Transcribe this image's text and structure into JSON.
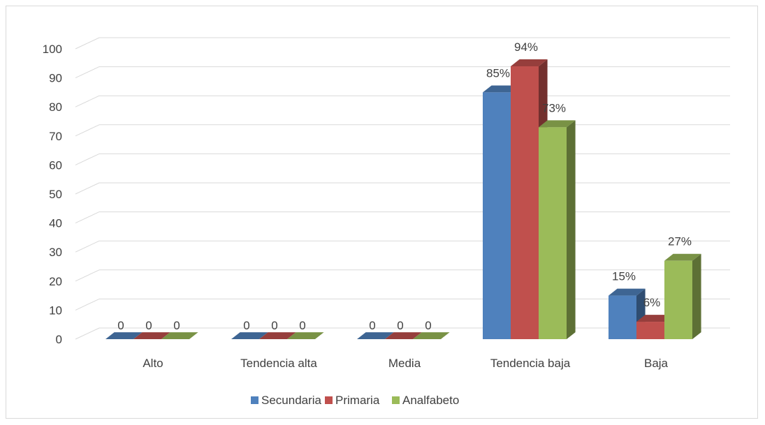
{
  "chart_data": {
    "type": "bar",
    "categories": [
      "Alto",
      "Tendencia alta",
      "Media",
      "Tendencia baja",
      "Baja"
    ],
    "series": [
      {
        "name": "Secundaria",
        "values": [
          0,
          0,
          0,
          85,
          15
        ],
        "labels": [
          "0",
          "0",
          "0",
          "85%",
          "15%"
        ],
        "color": "#4f81bd"
      },
      {
        "name": "Primaria",
        "values": [
          0,
          0,
          0,
          94,
          6
        ],
        "labels": [
          "0",
          "0",
          "0",
          "94%",
          "6%"
        ],
        "color": "#c0504d"
      },
      {
        "name": "Analfabeto",
        "values": [
          0,
          0,
          0,
          73,
          27
        ],
        "labels": [
          "0",
          "0",
          "0",
          "73%",
          "27%"
        ],
        "color": "#9bbb59"
      }
    ],
    "yticks": [
      "0",
      "10",
      "20",
      "30",
      "40",
      "50",
      "60",
      "70",
      "80",
      "90",
      "100"
    ],
    "ylim": [
      0,
      100
    ],
    "grid": true,
    "three_d": true,
    "legend": "bottom-center"
  }
}
